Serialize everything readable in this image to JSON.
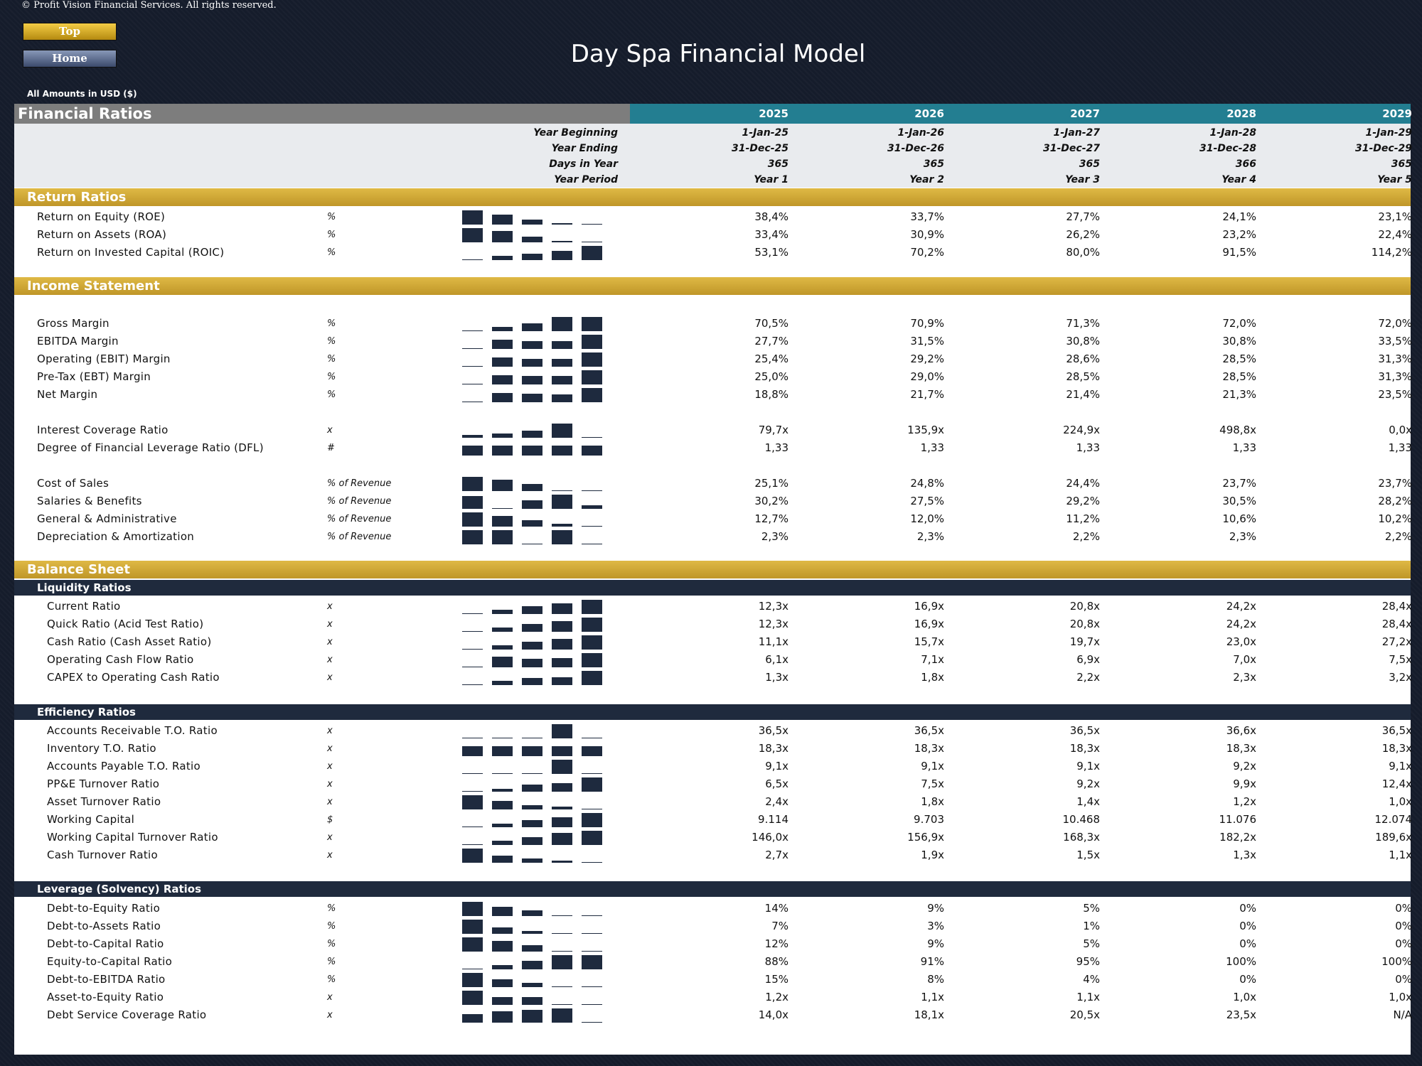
{
  "copyright": "© Profit Vision Financial Services. All rights reserved.",
  "nav": {
    "top": "Top",
    "home": "Home"
  },
  "title": "Day Spa Financial Model",
  "amounts_label": "All Amounts in  USD ($)",
  "header": {
    "title": "Financial Ratios",
    "years": [
      "2025",
      "2026",
      "2027",
      "2028",
      "2029"
    ]
  },
  "info_rows": [
    {
      "label": "Year Beginning",
      "values": [
        "1-Jan-25",
        "1-Jan-26",
        "1-Jan-27",
        "1-Jan-28",
        "1-Jan-29"
      ]
    },
    {
      "label": "Year Ending",
      "values": [
        "31-Dec-25",
        "31-Dec-26",
        "31-Dec-27",
        "31-Dec-28",
        "31-Dec-29"
      ]
    },
    {
      "label": "Days in Year",
      "values": [
        "365",
        "365",
        "365",
        "366",
        "365"
      ]
    },
    {
      "label": "Year Period",
      "values": [
        "Year 1",
        "Year 2",
        "Year 3",
        "Year 4",
        "Year 5"
      ]
    }
  ],
  "colors": {
    "gold": "#d4aa36",
    "teal": "#237e91",
    "navy": "#1f2a3d",
    "bar": "#1e2a3e"
  },
  "sections": [
    {
      "type": "section",
      "title": "Return Ratios"
    },
    {
      "type": "row",
      "label": "Return on Equity (ROE)",
      "unit": "%",
      "values": [
        "38,4%",
        "33,7%",
        "27,7%",
        "24,1%",
        "23,1%"
      ],
      "spark": [
        38.4,
        33.7,
        27.7,
        24.1,
        23.1
      ]
    },
    {
      "type": "row",
      "label": "Return on Assets (ROA)",
      "unit": "%",
      "values": [
        "33,4%",
        "30,9%",
        "26,2%",
        "23,2%",
        "22,4%"
      ],
      "spark": [
        33.4,
        30.9,
        26.2,
        23.2,
        22.4
      ]
    },
    {
      "type": "row",
      "label": "Return on Invested Capital (ROIC)",
      "unit": "%",
      "values": [
        "53,1%",
        "70,2%",
        "80,0%",
        "91,5%",
        "114,2%"
      ],
      "spark": [
        53.1,
        70.2,
        80.0,
        91.5,
        114.2
      ]
    },
    {
      "type": "section",
      "title": "Income Statement"
    },
    {
      "type": "row",
      "label": "Gross Margin",
      "unit": "%",
      "values": [
        "70,5%",
        "70,9%",
        "71,3%",
        "72,0%",
        "72,0%"
      ],
      "spark": [
        70.5,
        70.9,
        71.3,
        72.0,
        72.0
      ]
    },
    {
      "type": "row",
      "label": "EBITDA Margin",
      "unit": "%",
      "values": [
        "27,7%",
        "31,5%",
        "30,8%",
        "30,8%",
        "33,5%"
      ],
      "spark": [
        27.7,
        31.5,
        30.8,
        30.8,
        33.5
      ]
    },
    {
      "type": "row",
      "label": "Operating (EBIT) Margin",
      "unit": "%",
      "values": [
        "25,4%",
        "29,2%",
        "28,6%",
        "28,5%",
        "31,3%"
      ],
      "spark": [
        25.4,
        29.2,
        28.6,
        28.5,
        31.3
      ]
    },
    {
      "type": "row",
      "label": "Pre-Tax (EBT) Margin",
      "unit": "%",
      "values": [
        "25,0%",
        "29,0%",
        "28,5%",
        "28,5%",
        "31,3%"
      ],
      "spark": [
        25.0,
        29.0,
        28.5,
        28.5,
        31.3
      ]
    },
    {
      "type": "row",
      "label": "Net Margin",
      "unit": "%",
      "values": [
        "18,8%",
        "21,7%",
        "21,4%",
        "21,3%",
        "23,5%"
      ],
      "spark": [
        18.8,
        21.7,
        21.4,
        21.3,
        23.5
      ]
    },
    {
      "type": "row",
      "label": "Interest Coverage Ratio",
      "unit": "x",
      "values": [
        "79,7x",
        "135,9x",
        "224,9x",
        "498,8x",
        "0,0x"
      ],
      "spark": [
        79.7,
        135.9,
        224.9,
        498.8,
        0
      ]
    },
    {
      "type": "row",
      "label": "Degree of Financial Leverage Ratio (DFL)",
      "unit": "#",
      "values": [
        "1,33",
        "1,33",
        "1,33",
        "1,33",
        "1,33"
      ],
      "spark": [
        1.33,
        1.33,
        1.33,
        1.33,
        1.33
      ]
    },
    {
      "type": "row",
      "label": "Cost of Sales",
      "unit": "% of Revenue",
      "values": [
        "25,1%",
        "24,8%",
        "24,4%",
        "23,7%",
        "23,7%"
      ],
      "spark": [
        25.1,
        24.8,
        24.4,
        23.7,
        23.7
      ]
    },
    {
      "type": "row",
      "label": "Salaries & Benefits",
      "unit": "% of Revenue",
      "values": [
        "30,2%",
        "27,5%",
        "29,2%",
        "30,5%",
        "28,2%"
      ],
      "spark": [
        30.2,
        27.5,
        29.2,
        30.5,
        28.2
      ]
    },
    {
      "type": "row",
      "label": "General & Administrative",
      "unit": "% of Revenue",
      "values": [
        "12,7%",
        "12,0%",
        "11,2%",
        "10,6%",
        "10,2%"
      ],
      "spark": [
        12.7,
        12.0,
        11.2,
        10.6,
        10.2
      ]
    },
    {
      "type": "row",
      "label": "Depreciation & Amortization",
      "unit": "% of Revenue",
      "values": [
        "2,3%",
        "2,3%",
        "2,2%",
        "2,3%",
        "2,2%"
      ],
      "spark": [
        2.3,
        2.3,
        2.2,
        2.3,
        2.2
      ]
    },
    {
      "type": "section",
      "title": "Balance Sheet"
    },
    {
      "type": "subsection",
      "title": "Liquidity Ratios"
    },
    {
      "type": "row",
      "label": "Current Ratio",
      "unit": "x",
      "values": [
        "12,3x",
        "16,9x",
        "20,8x",
        "24,2x",
        "28,4x"
      ],
      "spark": [
        12.3,
        16.9,
        20.8,
        24.2,
        28.4
      ]
    },
    {
      "type": "row",
      "label": "Quick Ratio (Acid Test Ratio)",
      "unit": "x",
      "values": [
        "12,3x",
        "16,9x",
        "20,8x",
        "24,2x",
        "28,4x"
      ],
      "spark": [
        12.3,
        16.9,
        20.8,
        24.2,
        28.4
      ]
    },
    {
      "type": "row",
      "label": "Cash Ratio (Cash Asset Ratio)",
      "unit": "x",
      "values": [
        "11,1x",
        "15,7x",
        "19,7x",
        "23,0x",
        "27,2x"
      ],
      "spark": [
        11.1,
        15.7,
        19.7,
        23.0,
        27.2
      ]
    },
    {
      "type": "row",
      "label": "Operating Cash Flow Ratio",
      "unit": "x",
      "values": [
        "6,1x",
        "7,1x",
        "6,9x",
        "7,0x",
        "7,5x"
      ],
      "spark": [
        6.1,
        7.1,
        6.9,
        7.0,
        7.5
      ]
    },
    {
      "type": "row",
      "label": "CAPEX to Operating Cash Ratio",
      "unit": "x",
      "values": [
        "1,3x",
        "1,8x",
        "2,2x",
        "2,3x",
        "3,2x"
      ],
      "spark": [
        1.3,
        1.8,
        2.2,
        2.3,
        3.2
      ]
    },
    {
      "type": "subsection",
      "title": "Efficiency Ratios"
    },
    {
      "type": "row",
      "label": "Accounts Receivable T.O. Ratio",
      "unit": "x",
      "values": [
        "36,5x",
        "36,5x",
        "36,5x",
        "36,6x",
        "36,5x"
      ],
      "spark": [
        36.5,
        36.5,
        36.5,
        36.6,
        36.5
      ]
    },
    {
      "type": "row",
      "label": "Inventory T.O. Ratio",
      "unit": "x",
      "values": [
        "18,3x",
        "18,3x",
        "18,3x",
        "18,3x",
        "18,3x"
      ],
      "spark": [
        18.3,
        18.3,
        18.3,
        18.3,
        18.3
      ]
    },
    {
      "type": "row",
      "label": "Accounts Payable T.O. Ratio",
      "unit": "x",
      "values": [
        "9,1x",
        "9,1x",
        "9,1x",
        "9,2x",
        "9,1x"
      ],
      "spark": [
        9.1,
        9.1,
        9.1,
        9.2,
        9.1
      ]
    },
    {
      "type": "row",
      "label": "PP&E Turnover Ratio",
      "unit": "x",
      "values": [
        "6,5x",
        "7,5x",
        "9,2x",
        "9,9x",
        "12,4x"
      ],
      "spark": [
        6.5,
        7.5,
        9.2,
        9.9,
        12.4
      ]
    },
    {
      "type": "row",
      "label": "Asset Turnover Ratio",
      "unit": "x",
      "values": [
        "2,4x",
        "1,8x",
        "1,4x",
        "1,2x",
        "1,0x"
      ],
      "spark": [
        2.4,
        1.8,
        1.4,
        1.2,
        1.0
      ]
    },
    {
      "type": "row",
      "label": "Working Capital",
      "unit": "$",
      "values": [
        "9.114",
        "9.703",
        "10.468",
        "11.076",
        "12.074"
      ],
      "spark": [
        9114,
        9703,
        10468,
        11076,
        12074
      ]
    },
    {
      "type": "row",
      "label": "Working Capital Turnover Ratio",
      "unit": "x",
      "values": [
        "146,0x",
        "156,9x",
        "168,3x",
        "182,2x",
        "189,6x"
      ],
      "spark": [
        146.0,
        156.9,
        168.3,
        182.2,
        189.6
      ]
    },
    {
      "type": "row",
      "label": "Cash Turnover Ratio",
      "unit": "x",
      "values": [
        "2,7x",
        "1,9x",
        "1,5x",
        "1,3x",
        "1,1x"
      ],
      "spark": [
        2.7,
        1.9,
        1.5,
        1.3,
        1.1
      ]
    },
    {
      "type": "subsection",
      "title": "Leverage (Solvency) Ratios"
    },
    {
      "type": "row",
      "label": "Debt-to-Equity Ratio",
      "unit": "%",
      "values": [
        "14%",
        "9%",
        "5%",
        "0%",
        "0%"
      ],
      "spark": [
        14,
        9,
        5,
        0,
        0
      ]
    },
    {
      "type": "row",
      "label": "Debt-to-Assets Ratio",
      "unit": "%",
      "values": [
        "7%",
        "3%",
        "1%",
        "0%",
        "0%"
      ],
      "spark": [
        7,
        3,
        1,
        0,
        0
      ]
    },
    {
      "type": "row",
      "label": "Debt-to-Capital Ratio",
      "unit": "%",
      "values": [
        "12%",
        "9%",
        "5%",
        "0%",
        "0%"
      ],
      "spark": [
        12,
        9,
        5,
        0,
        0
      ]
    },
    {
      "type": "row",
      "label": "Equity-to-Capital Ratio",
      "unit": "%",
      "values": [
        "88%",
        "91%",
        "95%",
        "100%",
        "100%"
      ],
      "spark": [
        88,
        91,
        95,
        100,
        100
      ]
    },
    {
      "type": "row",
      "label": "Debt-to-EBITDA Ratio",
      "unit": "%",
      "values": [
        "15%",
        "8%",
        "4%",
        "0%",
        "0%"
      ],
      "spark": [
        15,
        8,
        4,
        0,
        0
      ]
    },
    {
      "type": "row",
      "label": "Asset-to-Equity Ratio",
      "unit": "x",
      "values": [
        "1,2x",
        "1,1x",
        "1,1x",
        "1,0x",
        "1,0x"
      ],
      "spark": [
        1.2,
        1.1,
        1.1,
        1.0,
        1.0
      ]
    },
    {
      "type": "row",
      "label": "Debt Service Coverage Ratio",
      "unit": "x",
      "values": [
        "14,0x",
        "18,1x",
        "20,5x",
        "23,5x",
        "N/A"
      ],
      "spark": [
        14.0,
        18.1,
        20.5,
        23.5,
        0
      ]
    }
  ]
}
